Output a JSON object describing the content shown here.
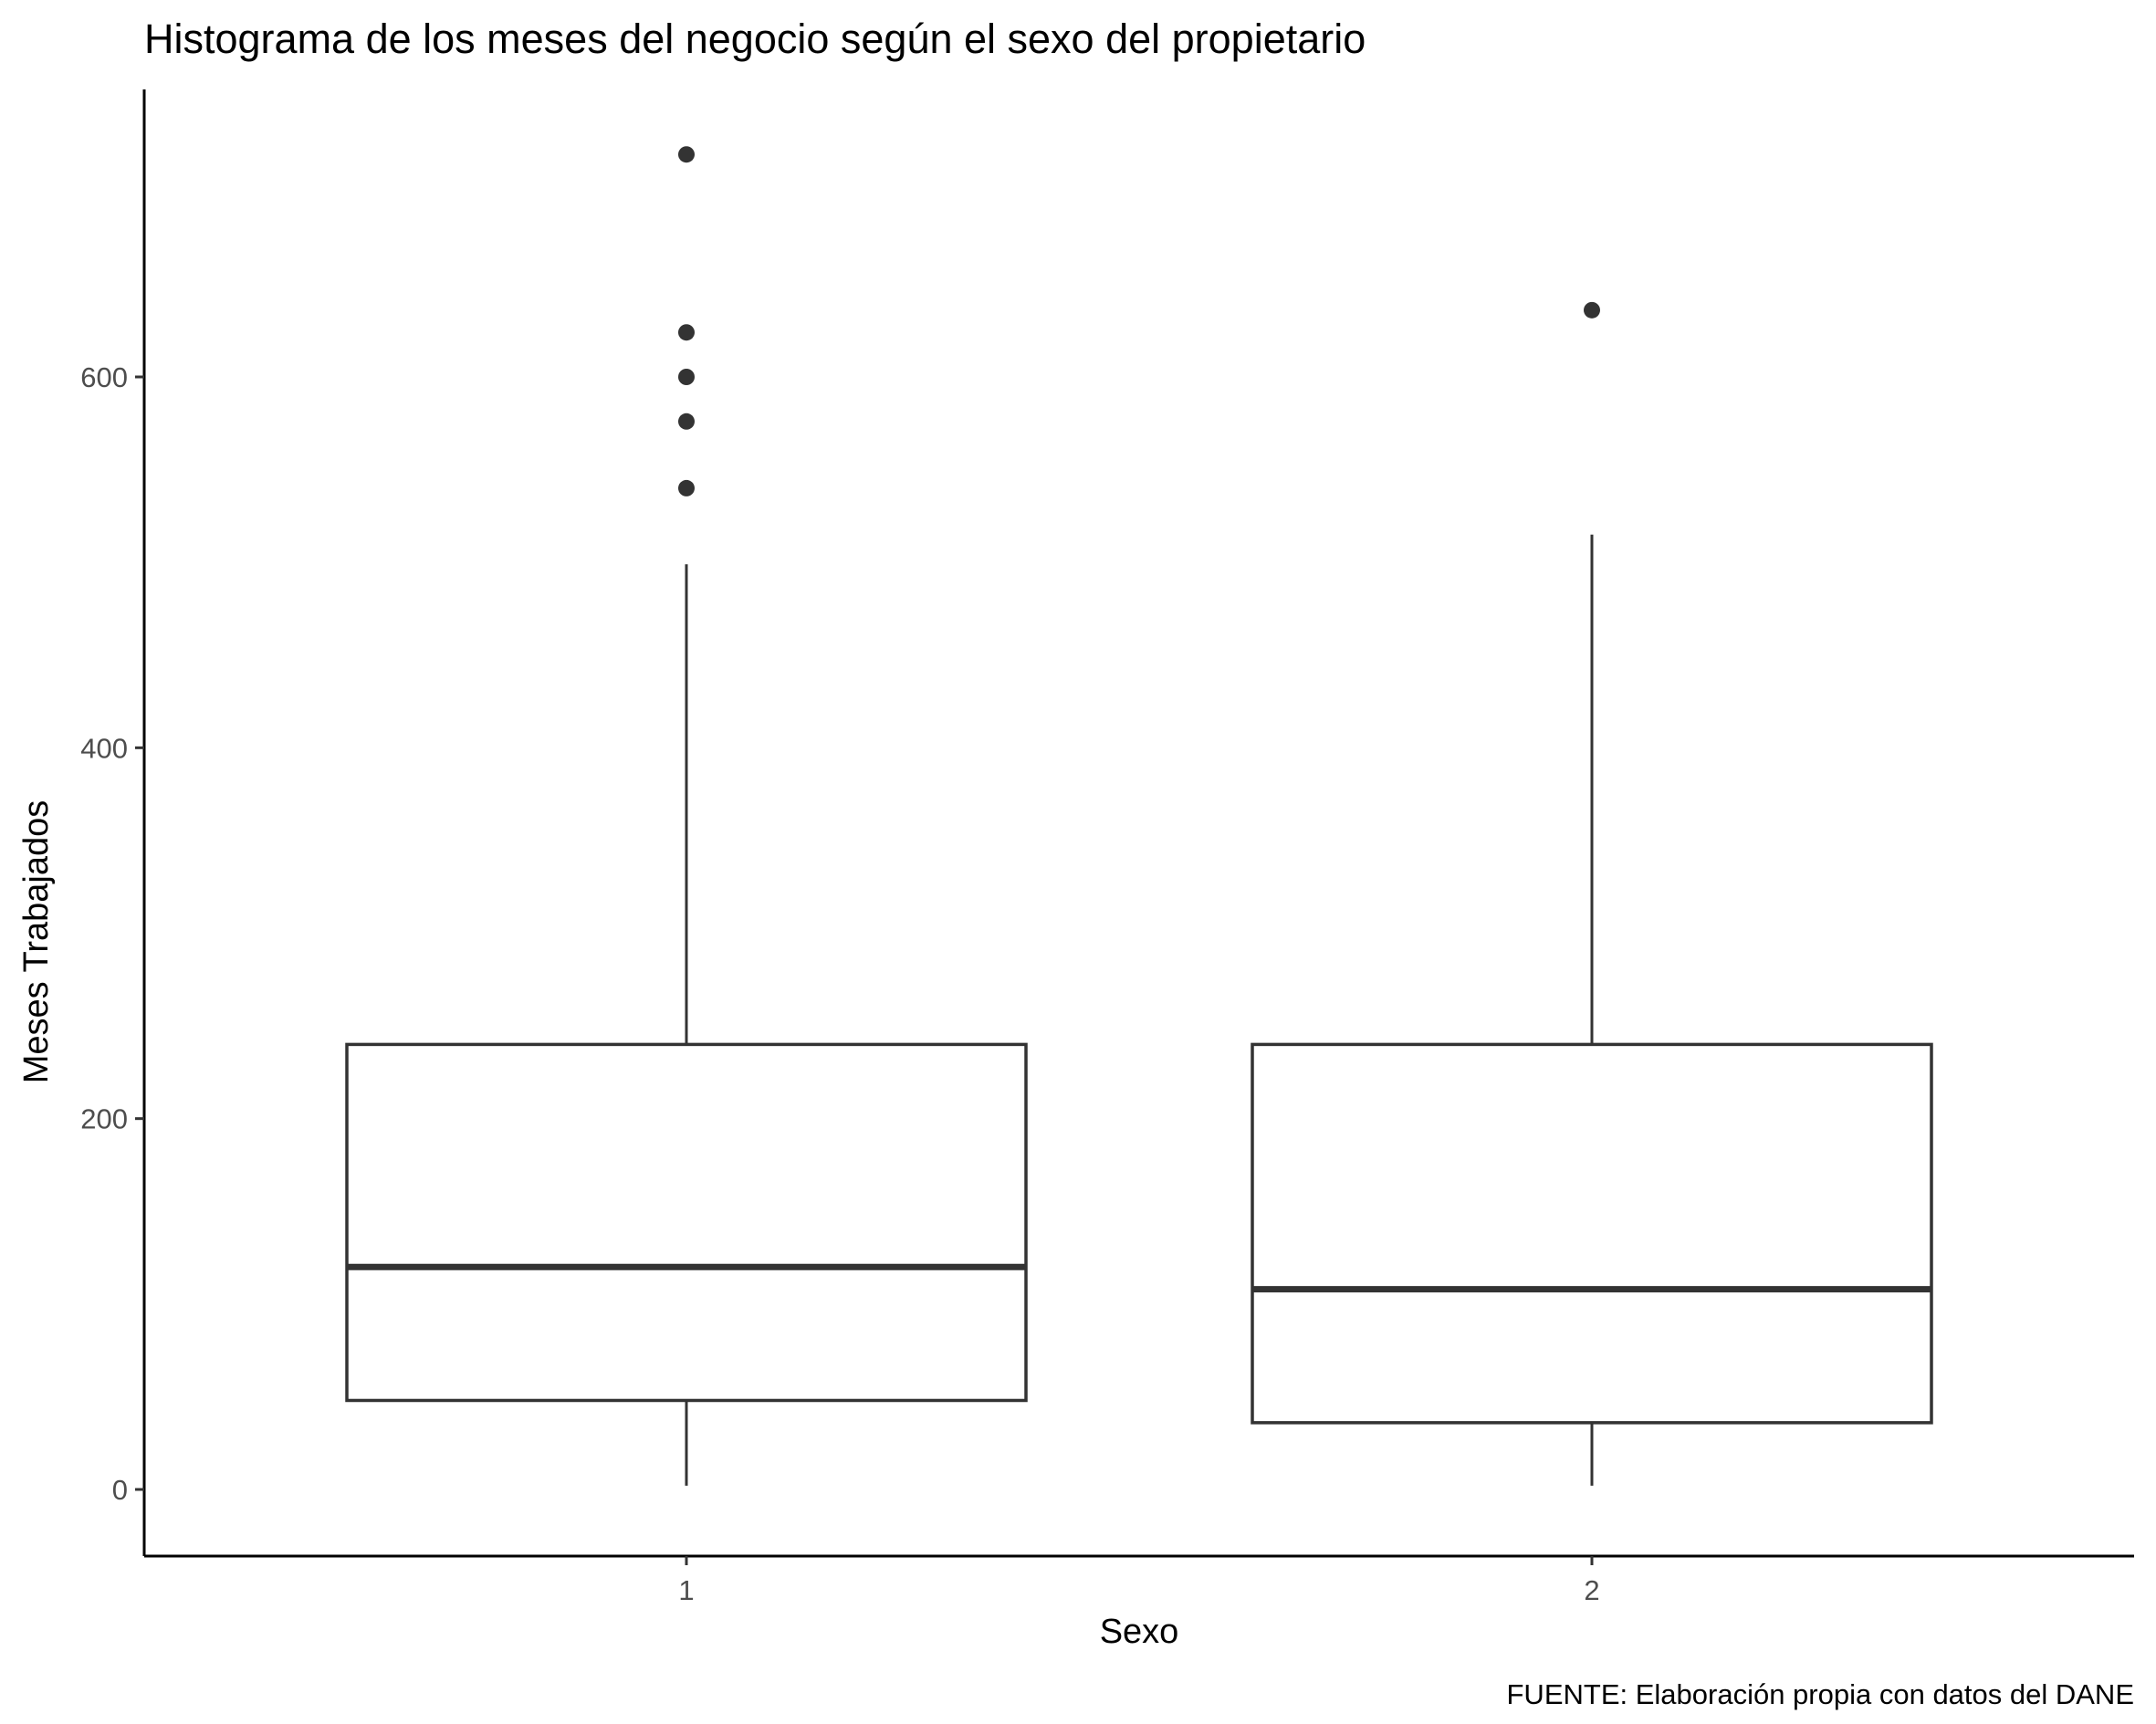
{
  "chart_data": {
    "type": "boxplot",
    "title": "Histograma de los meses del negocio según el sexo del propietario",
    "xlabel": "Sexo",
    "ylabel": "Meses Trabajados",
    "caption": "FUENTE: Elaboración propia con datos del DANE",
    "categories": [
      "1",
      "2"
    ],
    "yticks": [
      0,
      200,
      400,
      600
    ],
    "ylim": [
      -35,
      755
    ],
    "grid": false,
    "legend": "none",
    "colors": {
      "line": "#333333",
      "fill": "#ffffff",
      "axis": "#000000",
      "tick_text": "#4d4d4d"
    },
    "boxes": [
      {
        "category": "1",
        "whisker_low": 2,
        "q1": 48,
        "median": 120,
        "q3": 240,
        "whisker_high": 499,
        "outliers": [
          540,
          576,
          600,
          624,
          720
        ]
      },
      {
        "category": "2",
        "whisker_low": 2,
        "q1": 36,
        "median": 108,
        "q3": 240,
        "whisker_high": 515,
        "outliers": [
          636
        ]
      }
    ]
  }
}
